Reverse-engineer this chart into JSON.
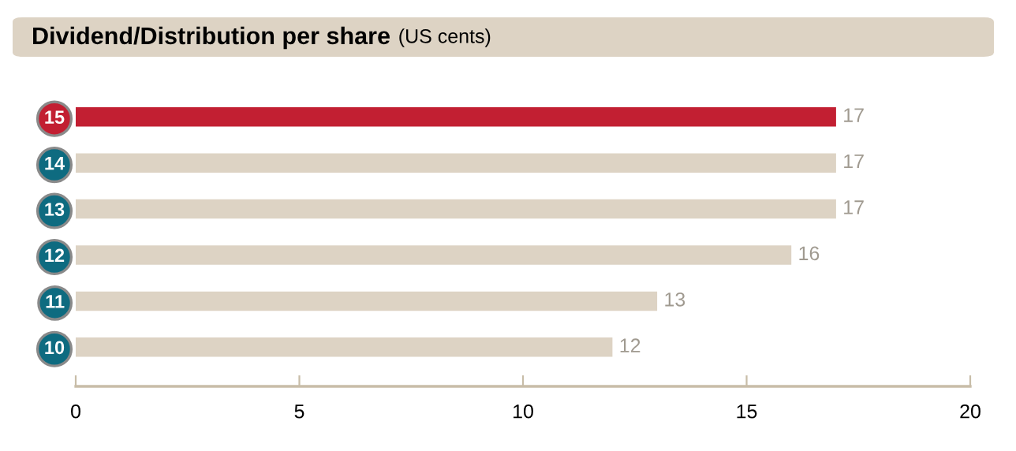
{
  "chart_data": {
    "type": "bar",
    "orientation": "horizontal",
    "title": "Dividend/Distribution per share",
    "subtitle": "(US cents)",
    "categories": [
      "15",
      "14",
      "13",
      "12",
      "11",
      "10"
    ],
    "values": [
      17,
      17,
      17,
      16,
      13,
      12
    ],
    "colors": [
      "#c21f32",
      "#ddd3c4",
      "#ddd3c4",
      "#ddd3c4",
      "#ddd3c4",
      "#ddd3c4"
    ],
    "xlim": [
      0,
      20
    ],
    "xticks": [
      0,
      5,
      10,
      15,
      20
    ],
    "data_labels": true,
    "grid": false,
    "legend": false
  }
}
